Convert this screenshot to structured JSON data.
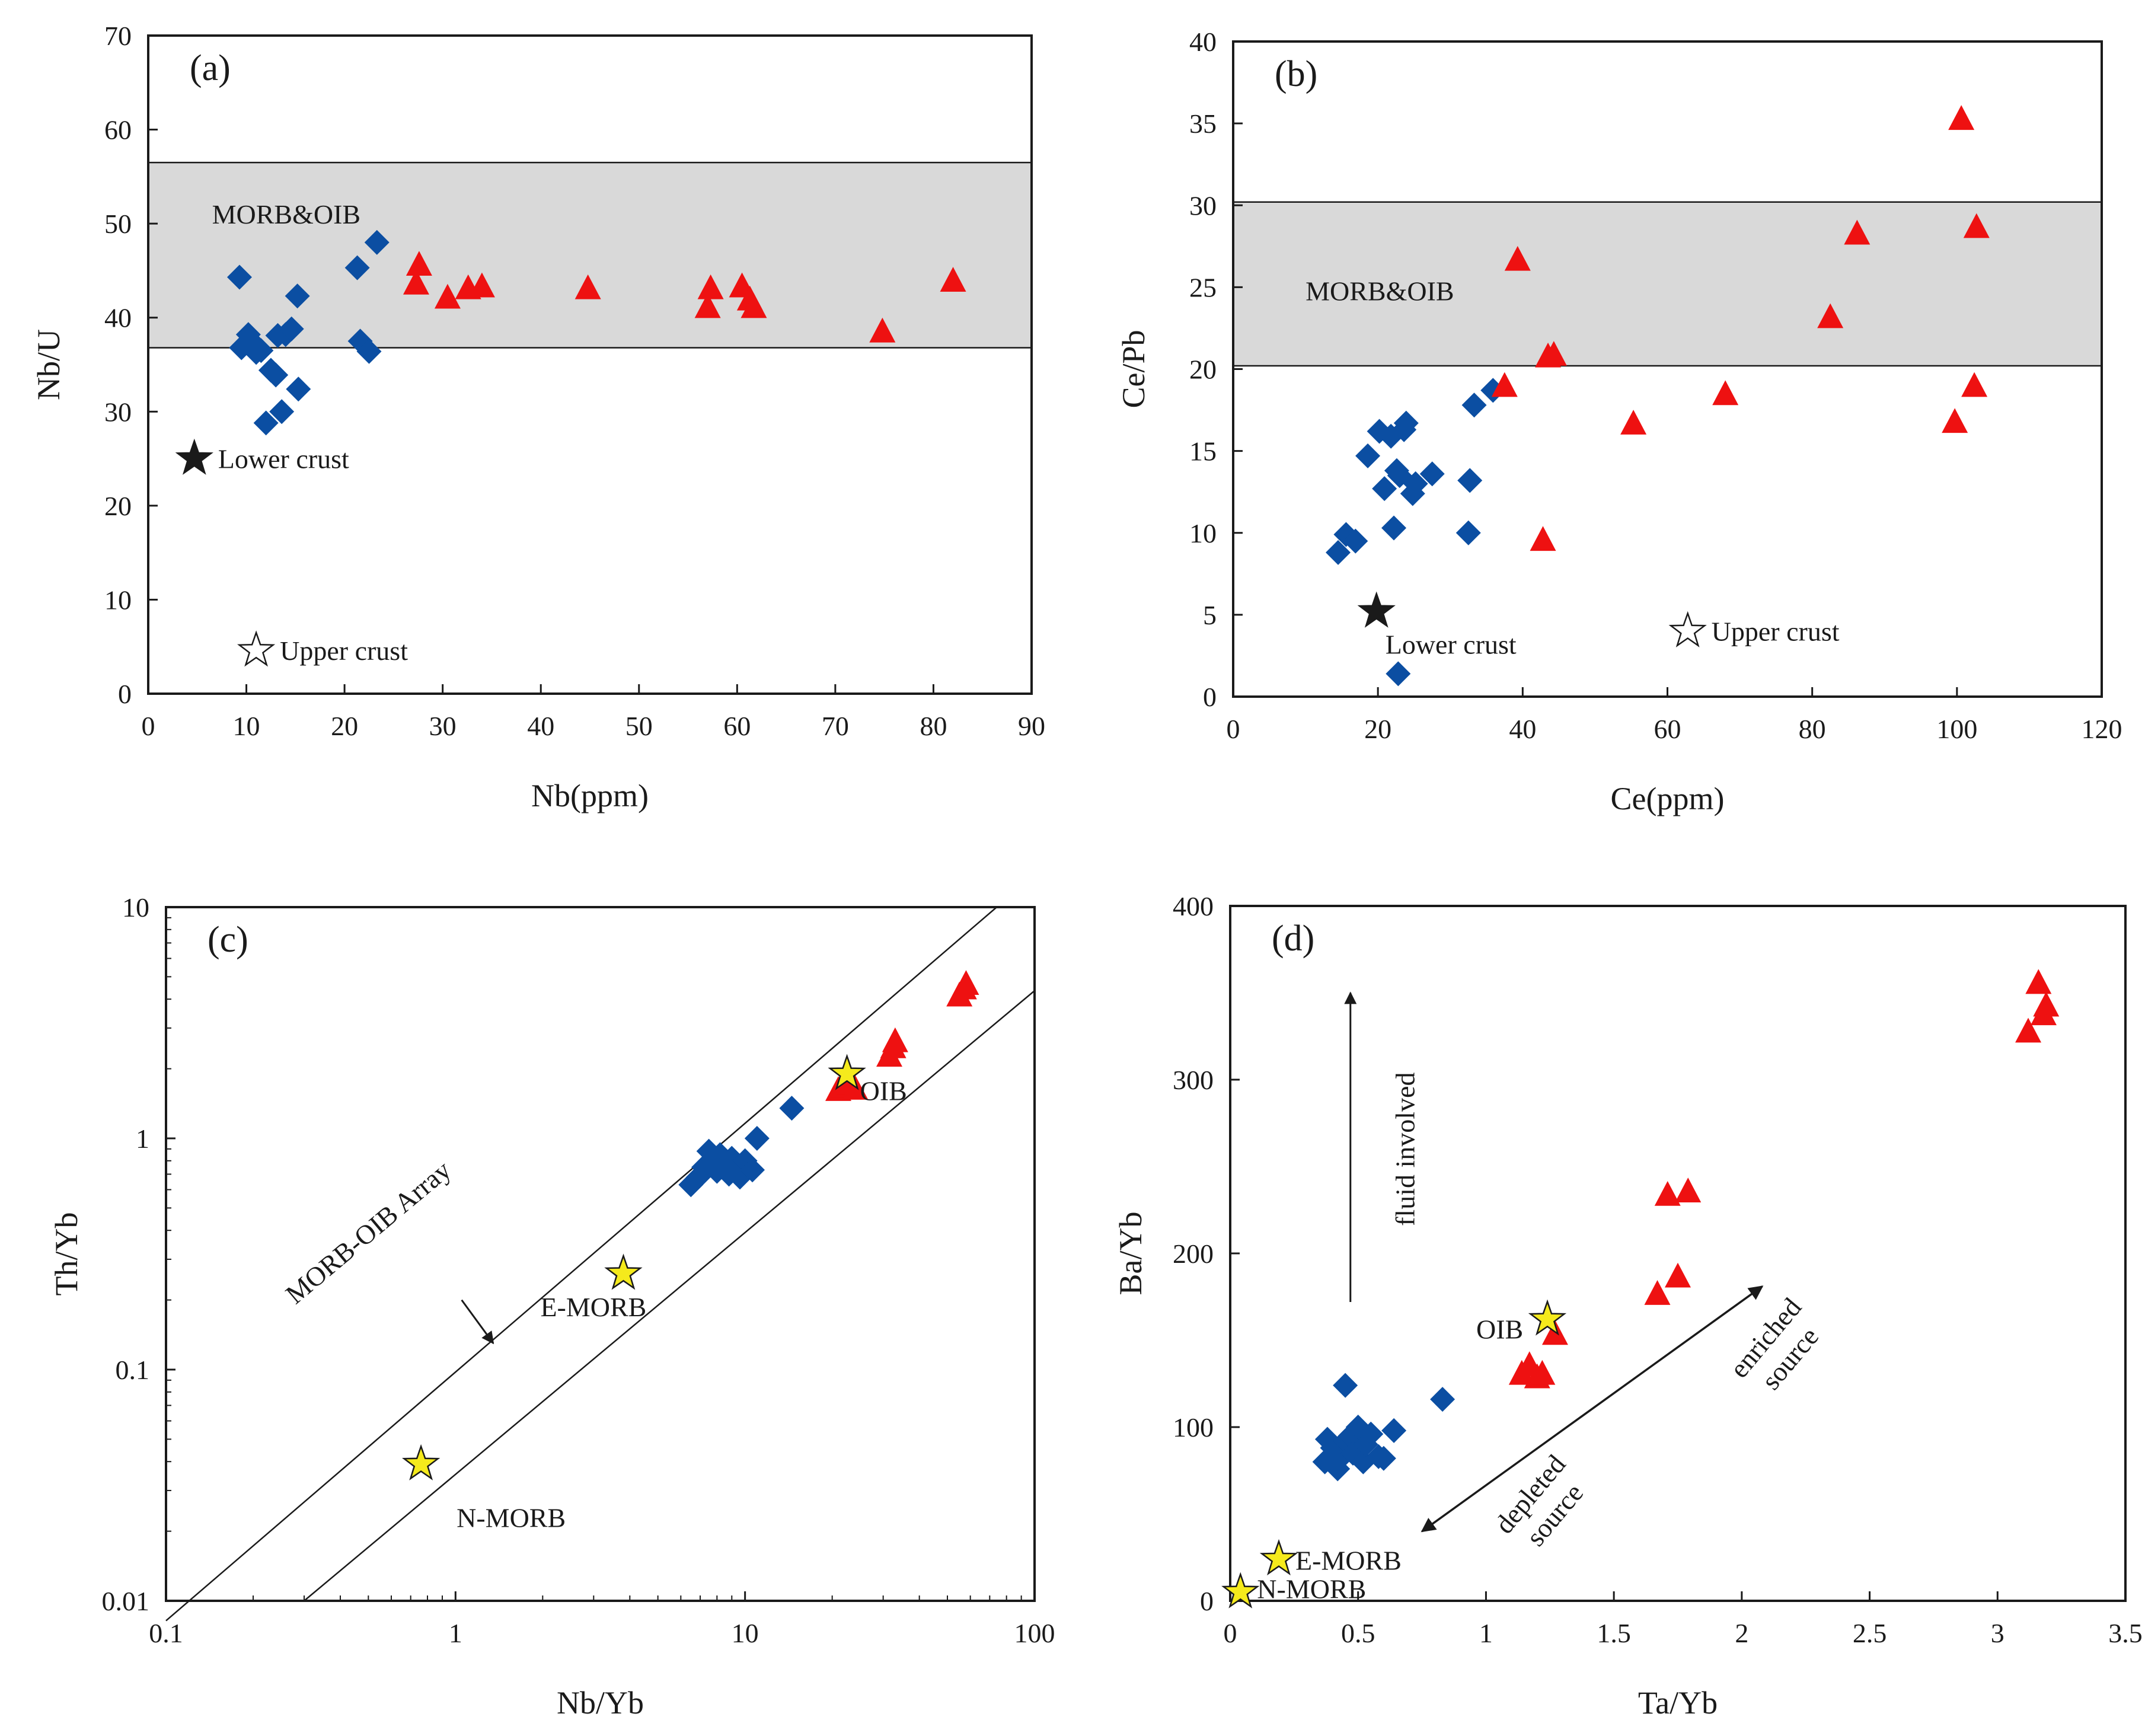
{
  "figure": {
    "colors": {
      "blue": "#0b4ea2",
      "red": "#ee1111",
      "yellow": "#f5ea1c",
      "band": "#d9d9d9",
      "ink": "#1a1a1a"
    },
    "icons": {
      "diamond": "blue-diamond-marker",
      "triangle": "red-triangle-marker",
      "star": "star-marker"
    }
  },
  "chart_data": [
    {
      "id": "a",
      "type": "scatter",
      "panel_label": "(a)",
      "xlabel": "Nb(ppm)",
      "ylabel": "Nb/U",
      "xlim": [
        0,
        90
      ],
      "ylim": [
        0,
        70
      ],
      "xticks": [
        0,
        10,
        20,
        30,
        40,
        50,
        60,
        70,
        80,
        90
      ],
      "yticks": [
        0,
        10,
        20,
        30,
        40,
        50,
        60,
        70
      ],
      "band": {
        "y0": 36.8,
        "y1": 56.5,
        "label": "MORB&OIB",
        "label_at": [
          6.5,
          50
        ]
      },
      "series": [
        {
          "name": "blue-diamond",
          "marker": "diamond",
          "x": [
            9.3,
            9.5,
            10.2,
            10.5,
            11.0,
            11.5,
            12.5,
            13.0,
            13.2,
            13.6,
            14.0,
            14.6,
            15.2,
            15.3,
            21.3,
            21.6,
            22.5,
            23.3,
            12.0
          ],
          "y": [
            44.3,
            36.8,
            38.2,
            37.5,
            36.3,
            36.5,
            34.4,
            33.9,
            38.1,
            30.0,
            38.2,
            38.8,
            42.3,
            32.4,
            45.3,
            37.5,
            36.4,
            48.0,
            28.8
          ]
        },
        {
          "name": "red-triangle",
          "marker": "triangle",
          "x": [
            27.3,
            27.6,
            30.5,
            32.6,
            34.0,
            44.8,
            57.0,
            57.3,
            60.5,
            61.3,
            61.7,
            74.8,
            82.0
          ],
          "y": [
            43.5,
            45.5,
            42.0,
            43.0,
            43.2,
            43.0,
            41.0,
            43.0,
            43.2,
            41.8,
            41.0,
            38.4,
            43.8
          ]
        }
      ],
      "points": [
        {
          "name": "lower-crust",
          "marker": "star-filled",
          "x": 4.7,
          "y": 25.0,
          "label": "Lower crust",
          "label_dx": 40,
          "label_dy": 0
        },
        {
          "name": "upper-crust",
          "marker": "star-open",
          "x": 11.0,
          "y": 4.6,
          "label": "Upper crust",
          "label_dx": 40,
          "label_dy": 0
        }
      ]
    },
    {
      "id": "b",
      "type": "scatter",
      "panel_label": "(b)",
      "xlabel": "Ce(ppm)",
      "ylabel": "Ce/Pb",
      "xlim": [
        0,
        120
      ],
      "ylim": [
        0,
        40
      ],
      "xticks": [
        0,
        20,
        40,
        60,
        80,
        100,
        120
      ],
      "yticks": [
        0,
        5,
        10,
        15,
        20,
        25,
        30,
        35,
        40
      ],
      "band": {
        "y0": 20.2,
        "y1": 30.2,
        "label": "MORB&OIB",
        "label_at": [
          10,
          24.2
        ]
      },
      "series": [
        {
          "name": "blue-diamond",
          "marker": "diamond",
          "x": [
            14.5,
            15.6,
            16.9,
            18.6,
            20.2,
            20.9,
            21.8,
            22.2,
            22.6,
            23.0,
            23.6,
            23.9,
            24.8,
            25.2,
            27.5,
            32.5,
            32.7,
            33.3,
            35.9,
            22.8
          ],
          "y": [
            8.8,
            9.9,
            9.5,
            14.7,
            16.2,
            12.7,
            15.9,
            10.3,
            13.8,
            13.5,
            16.3,
            16.7,
            12.4,
            13.0,
            13.6,
            10.0,
            13.2,
            17.8,
            18.7,
            1.4
          ]
        },
        {
          "name": "red-triangle",
          "marker": "triangle",
          "x": [
            37.5,
            39.3,
            42.8,
            43.5,
            44.3,
            55.3,
            68.0,
            82.5,
            86.2,
            99.7,
            100.6,
            102.4,
            102.7
          ],
          "y": [
            18.9,
            26.6,
            9.5,
            20.7,
            20.8,
            16.6,
            18.4,
            23.1,
            28.2,
            16.7,
            35.2,
            18.9,
            28.6
          ]
        }
      ],
      "points": [
        {
          "name": "lower-crust",
          "marker": "star-filled",
          "x": 19.8,
          "y": 5.2,
          "label": "Lower crust",
          "label_dx": 15,
          "label_dy": 55
        },
        {
          "name": "upper-crust",
          "marker": "star-open",
          "x": 62.8,
          "y": 4.0,
          "label": "Upper crust",
          "label_dx": 40,
          "label_dy": 0
        }
      ]
    },
    {
      "id": "c",
      "type": "scatter",
      "scale": "log-log",
      "panel_label": "(c)",
      "xlabel": "Nb/Yb",
      "ylabel": "Th/Yb",
      "xlim": [
        0.1,
        100
      ],
      "ylim": [
        0.01,
        10
      ],
      "xticks": [
        0.1,
        1,
        10,
        100
      ],
      "yticks": [
        0.01,
        0.1,
        1,
        10
      ],
      "tick_labels_x": [
        "0.1",
        "1",
        "10",
        "100"
      ],
      "tick_labels_y": [
        "0.01",
        "0.1",
        "1",
        "10"
      ],
      "array_lines": [
        {
          "name": "upper-array-line",
          "x": [
            0.1,
            74
          ],
          "y": [
            0.0082,
            10
          ]
        },
        {
          "name": "lower-array-line",
          "x": [
            0.3,
            100
          ],
          "y": [
            0.01,
            4.35
          ]
        }
      ],
      "array_label": "MORB-OIB Array",
      "array_arrow": {
        "from": [
          1.05,
          0.2
        ],
        "to": [
          1.35,
          0.13
        ]
      },
      "series": [
        {
          "name": "blue-diamond",
          "marker": "diamond",
          "x": [
            6.5,
            6.9,
            7.2,
            7.5,
            7.7,
            8.0,
            8.2,
            8.5,
            8.8,
            9.0,
            9.3,
            9.6,
            10.0,
            10.6,
            11.0,
            14.5
          ],
          "y": [
            0.63,
            0.68,
            0.75,
            0.88,
            0.8,
            0.72,
            0.85,
            0.76,
            0.7,
            0.82,
            0.75,
            0.68,
            0.8,
            0.73,
            1.0,
            1.35
          ]
        },
        {
          "name": "red-triangle",
          "marker": "triangle",
          "x": [
            21.0,
            22.0,
            23.0,
            24.0,
            31.5,
            32.5,
            33.0,
            55.0,
            57.0,
            58.0
          ],
          "y": [
            1.6,
            1.65,
            1.7,
            1.62,
            2.25,
            2.45,
            2.6,
            4.1,
            4.4,
            4.6
          ]
        }
      ],
      "points": [
        {
          "name": "oib-star",
          "marker": "star-yellow",
          "x": 22.5,
          "y": 1.9,
          "label": "OIB",
          "label_dx": 22,
          "label_dy": 28
        },
        {
          "name": "e-morb-star",
          "marker": "star-yellow",
          "x": 3.8,
          "y": 0.26,
          "label": "E-MORB",
          "label_dx": -140,
          "label_dy": 56
        },
        {
          "name": "n-morb-star",
          "marker": "star-yellow",
          "x": 0.76,
          "y": 0.039,
          "label": "N-MORB",
          "label_dx": 60,
          "label_dy": 90
        }
      ]
    },
    {
      "id": "d",
      "type": "scatter",
      "panel_label": "(d)",
      "xlabel": "Ta/Yb",
      "ylabel": "Ba/Yb",
      "xlim": [
        0,
        3.5
      ],
      "ylim": [
        0,
        400
      ],
      "xticks": [
        0,
        0.5,
        1,
        1.5,
        2,
        2.5,
        3,
        3.5
      ],
      "yticks": [
        0,
        100,
        200,
        300,
        400
      ],
      "tick_labels_x": [
        "0",
        "0.5",
        "1",
        "1.5",
        "2",
        "2.5",
        "3",
        "3.5"
      ],
      "series": [
        {
          "name": "blue-diamond",
          "marker": "diamond",
          "x": [
            0.37,
            0.38,
            0.4,
            0.42,
            0.43,
            0.45,
            0.47,
            0.48,
            0.5,
            0.52,
            0.53,
            0.55,
            0.58,
            0.6,
            0.64,
            0.83,
            0.45
          ],
          "y": [
            80,
            93,
            88,
            76,
            82,
            92,
            95,
            85,
            100,
            80,
            90,
            96,
            83,
            82,
            98,
            116,
            124
          ]
        },
        {
          "name": "red-triangle",
          "marker": "triangle",
          "x": [
            1.14,
            1.17,
            1.2,
            1.22,
            1.27,
            1.67,
            1.71,
            1.75,
            1.79,
            3.12,
            3.16,
            3.18,
            3.19
          ],
          "y": [
            130,
            135,
            128,
            130,
            153,
            176,
            233,
            186,
            235,
            327,
            355,
            337,
            342
          ]
        }
      ],
      "points": [
        {
          "name": "oib-star",
          "marker": "star-yellow",
          "x": 1.24,
          "y": 162,
          "label": "OIB",
          "label_dx": -120,
          "label_dy": 16
        },
        {
          "name": "e-morb-star",
          "marker": "star-yellow",
          "x": 0.19,
          "y": 24,
          "label": "E-MORB",
          "label_dx": 28,
          "label_dy": 2
        },
        {
          "name": "n-morb-star",
          "marker": "star-yellow",
          "x": 0.04,
          "y": 5,
          "label": "N-MORB",
          "label_dx": 28,
          "label_dy": -6
        }
      ],
      "annotations": {
        "fluid_label": "fluid involved",
        "enriched_label": [
          "enriched",
          "source"
        ],
        "depleted_label": [
          "depleted",
          "source"
        ]
      },
      "arrows": {
        "fluid": {
          "from": [
            0.47,
            172
          ],
          "to": [
            0.47,
            350
          ]
        },
        "trend": {
          "from": [
            0.75,
            40
          ],
          "to": [
            2.08,
            181
          ]
        }
      }
    }
  ]
}
